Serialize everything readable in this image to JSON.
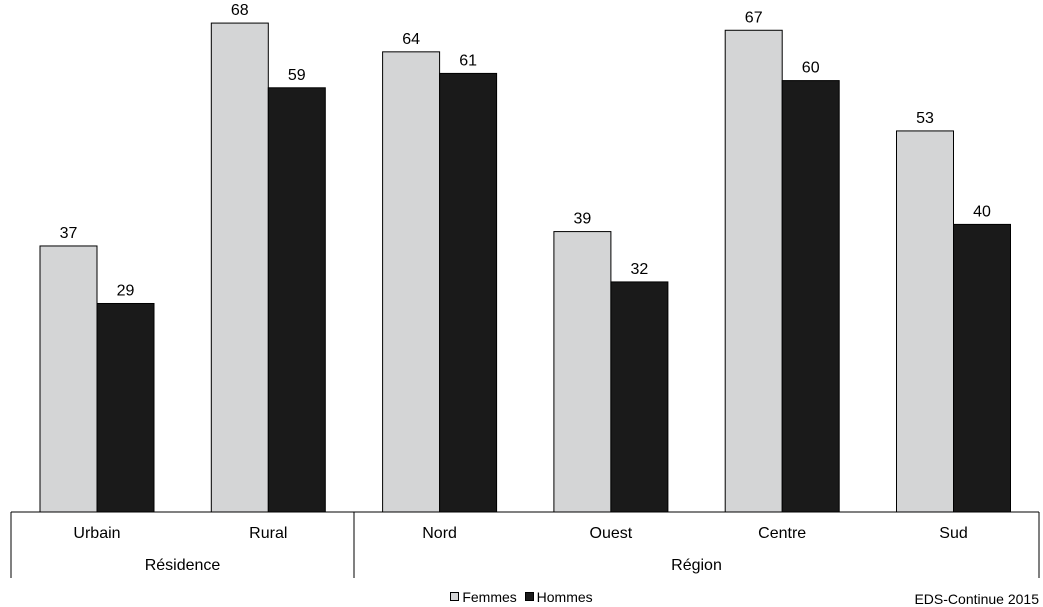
{
  "chart_data": {
    "type": "bar",
    "categories": [
      "Urbain",
      "Rural",
      "Nord",
      "Ouest",
      "Centre",
      "Sud"
    ],
    "groups": [
      {
        "label": "Résidence",
        "categories": [
          "Urbain",
          "Rural"
        ]
      },
      {
        "label": "Région",
        "categories": [
          "Nord",
          "Ouest",
          "Centre",
          "Sud"
        ]
      }
    ],
    "series": [
      {
        "name": "Femmes",
        "color": "#d4d5d6",
        "values": [
          37,
          68,
          64,
          39,
          67,
          53
        ]
      },
      {
        "name": "Hommes",
        "color": "#1a1a1a",
        "values": [
          29,
          59,
          61,
          32,
          60,
          40
        ]
      }
    ],
    "ylim": [
      0,
      72
    ],
    "grid": false,
    "legend_position": "bottom",
    "data_labels": true
  },
  "legend": {
    "femmes_label": "Femmes",
    "hommes_label": "Hommes"
  },
  "source": "EDS-Continue 2015"
}
